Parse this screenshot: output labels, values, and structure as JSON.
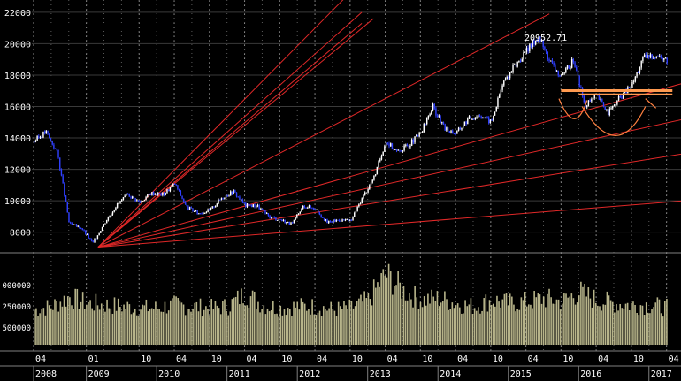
{
  "chart_data": {
    "type": "candlestick",
    "title": "",
    "ylim": [
      6800,
      22500
    ],
    "y_ticks": [
      8000,
      10000,
      12000,
      14000,
      16000,
      18000,
      20000,
      22000
    ],
    "volume_tick_labels": [
      "000000",
      "250000",
      "500000"
    ],
    "x_month_labels": [
      "04",
      "01",
      "10",
      "04",
      "10",
      "04",
      "10",
      "04",
      "10",
      "04",
      "10",
      "04",
      "10",
      "04",
      "10",
      "04",
      "10",
      "04"
    ],
    "x_year_labels": [
      "2008",
      "2009",
      "2010",
      "2011",
      "2012",
      "2013",
      "2014",
      "2015",
      "2016",
      "2017"
    ],
    "annotation": "20952.71",
    "price_series": {
      "name": "",
      "x": [
        "2008-04",
        "2008-06",
        "2008-08",
        "2008-10",
        "2008-12",
        "2009-02",
        "2009-04",
        "2009-06",
        "2009-08",
        "2009-10",
        "2009-12",
        "2010-02",
        "2010-04",
        "2010-06",
        "2010-08",
        "2010-10",
        "2010-12",
        "2011-02",
        "2011-04",
        "2011-06",
        "2011-08",
        "2011-10",
        "2011-12",
        "2012-02",
        "2012-04",
        "2012-06",
        "2012-08",
        "2012-10",
        "2012-12",
        "2013-02",
        "2013-04",
        "2013-06",
        "2013-08",
        "2013-10",
        "2013-12",
        "2014-02",
        "2014-04",
        "2014-06",
        "2014-08",
        "2014-10",
        "2014-12",
        "2015-02",
        "2015-04",
        "2015-06",
        "2015-08",
        "2015-10",
        "2015-12",
        "2016-02",
        "2016-04",
        "2016-06",
        "2016-08",
        "2016-10",
        "2016-12",
        "2017-02",
        "2017-04"
      ],
      "values": [
        13800,
        14400,
        13000,
        8500,
        8300,
        7300,
        8600,
        9700,
        10400,
        9900,
        10500,
        10400,
        11100,
        9600,
        9200,
        9400,
        10200,
        10600,
        9700,
        9700,
        9000,
        8800,
        8500,
        9700,
        9500,
        8600,
        8800,
        8700,
        10200,
        11500,
        13800,
        13100,
        13600,
        14300,
        16000,
        14600,
        14300,
        15200,
        15500,
        15000,
        17500,
        18600,
        19500,
        20500,
        18900,
        17800,
        19000,
        16000,
        16700,
        15600,
        16600,
        17400,
        19100,
        19300,
        18900
      ]
    },
    "volume_series": {
      "name": "",
      "x": [
        "2008-04",
        "2008-07",
        "2008-10",
        "2009-01",
        "2009-04",
        "2009-07",
        "2009-10",
        "2010-01",
        "2010-04",
        "2010-07",
        "2010-10",
        "2011-01",
        "2011-04",
        "2011-07",
        "2011-10",
        "2012-01",
        "2012-04",
        "2012-07",
        "2012-10",
        "2013-01",
        "2013-04",
        "2013-07",
        "2013-10",
        "2014-01",
        "2014-04",
        "2014-07",
        "2014-10",
        "2015-01",
        "2015-04",
        "2015-07",
        "2015-10",
        "2016-01",
        "2016-04",
        "2016-07",
        "2016-10",
        "2017-01",
        "2017-04"
      ],
      "values": [
        2200000,
        2400000,
        3000000,
        2600000,
        2500000,
        2400000,
        2300000,
        2300000,
        2500000,
        2400000,
        2300000,
        2400000,
        3200000,
        2500000,
        2300000,
        2400000,
        2400000,
        2200000,
        2300000,
        2800000,
        4400000,
        3400000,
        2800000,
        2900000,
        2600000,
        2400000,
        2800000,
        2600000,
        2700000,
        2900000,
        2700000,
        3300000,
        2800000,
        2600000,
        2500000,
        2500000,
        2300000
      ]
    },
    "fan_lines": {
      "origin": {
        "x": "2009-03",
        "y": 7050
      },
      "endpoints": [
        {
          "x": "2012-12",
          "y": 24000
        },
        {
          "x": "2012-12",
          "y": 22000
        },
        {
          "x": "2012-12",
          "y": 21300
        },
        {
          "x": "2013-02",
          "y": 21600
        },
        {
          "x": "2015-08",
          "y": 21900
        },
        {
          "x": "2017-07",
          "y": 17500
        },
        {
          "x": "2017-07",
          "y": 15200
        },
        {
          "x": "2017-07",
          "y": 13000
        },
        {
          "x": "2017-07",
          "y": 10000
        }
      ]
    },
    "horizontal_level": {
      "y": 16900,
      "x_start": "2015-10",
      "x_end": "2017-05"
    }
  }
}
